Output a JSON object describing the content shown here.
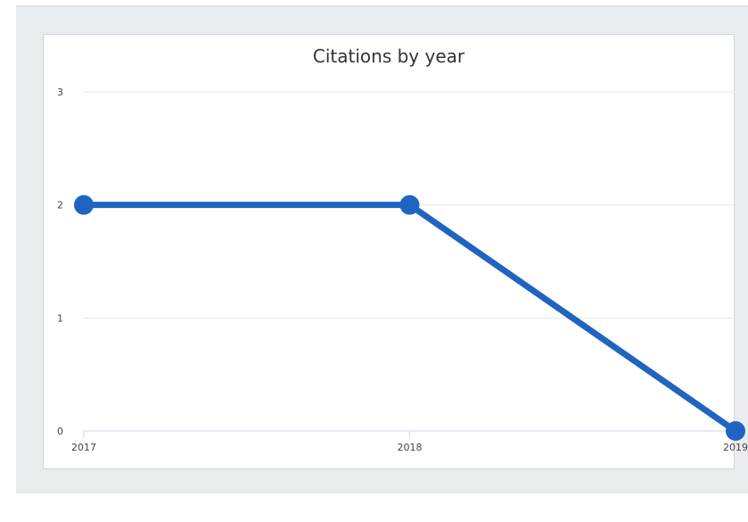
{
  "chart_data": {
    "type": "line",
    "title": "Citations by year",
    "xlabel": "",
    "ylabel": "",
    "categories": [
      "2017",
      "2018",
      "2019"
    ],
    "values": [
      2,
      2,
      0
    ],
    "ylim": [
      0,
      3
    ],
    "yticks": [
      "0",
      "1",
      "2",
      "3"
    ],
    "grid": true,
    "legend": "none",
    "colors": {
      "line": "#1f64c0",
      "grid": "#e6e6e6",
      "axis": "#ccd6eb"
    }
  }
}
